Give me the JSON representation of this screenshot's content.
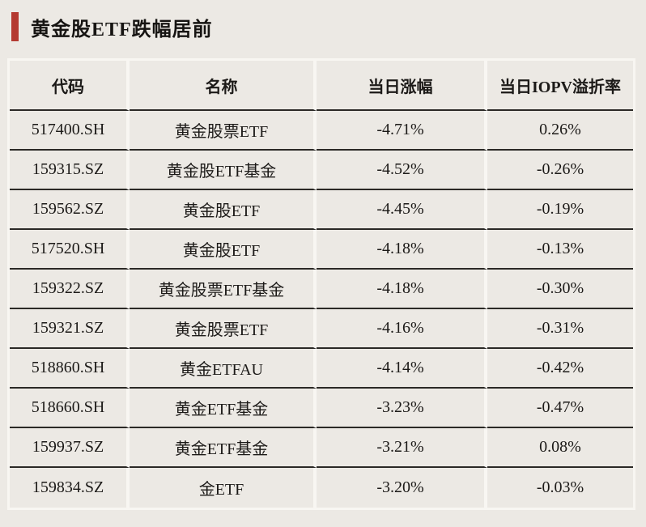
{
  "colors": {
    "page_background": "#ece9e4",
    "accent_red": "#b43a31",
    "grid_dark": "#2b2926",
    "grid_light": "#f8f6f2",
    "text": "#1c1a18"
  },
  "header": {
    "title": "黄金股ETF跌幅居前"
  },
  "chart_data": {
    "type": "table",
    "title": "黄金股ETF跌幅居前",
    "columns": [
      "代码",
      "名称",
      "当日涨幅",
      "当日IOPV溢折率"
    ],
    "rows": [
      [
        "517400.SH",
        "黄金股票ETF",
        "-4.71%",
        "0.26%"
      ],
      [
        "159315.SZ",
        "黄金股ETF基金",
        "-4.52%",
        "-0.26%"
      ],
      [
        "159562.SZ",
        "黄金股ETF",
        "-4.45%",
        "-0.19%"
      ],
      [
        "517520.SH",
        "黄金股ETF",
        "-4.18%",
        "-0.13%"
      ],
      [
        "159322.SZ",
        "黄金股票ETF基金",
        "-4.18%",
        "-0.30%"
      ],
      [
        "159321.SZ",
        "黄金股票ETF",
        "-4.16%",
        "-0.31%"
      ],
      [
        "518860.SH",
        "黄金ETFAU",
        "-4.14%",
        "-0.42%"
      ],
      [
        "518660.SH",
        "黄金ETF基金",
        "-3.23%",
        "-0.47%"
      ],
      [
        "159937.SZ",
        "黄金ETF基金",
        "-3.21%",
        "0.08%"
      ],
      [
        "159834.SZ",
        "金ETF",
        "-3.20%",
        "-0.03%"
      ]
    ]
  }
}
